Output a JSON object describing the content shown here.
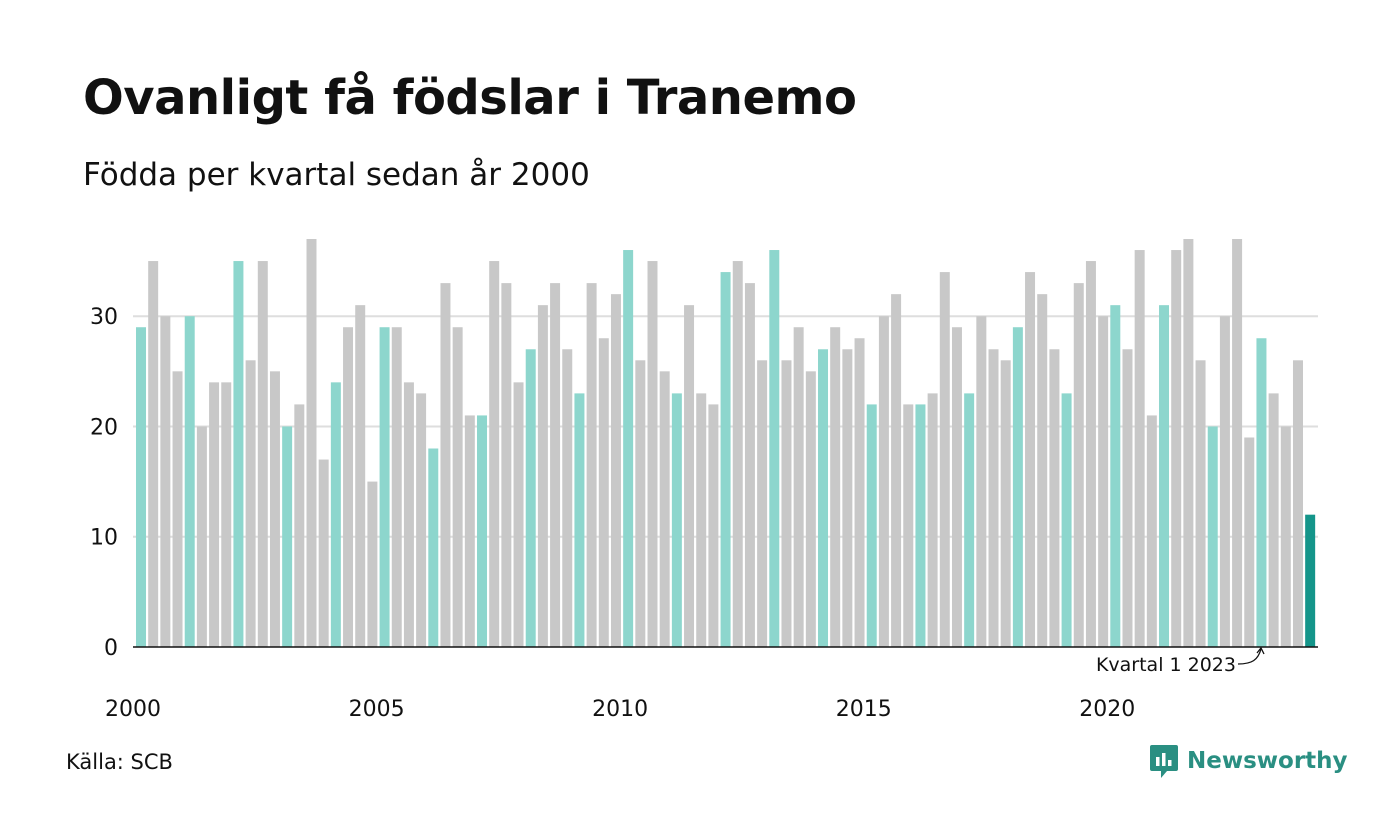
{
  "title": "Ovanligt få födslar i Tranemo",
  "subtitle": "Födda per kvartal sedan år 2000",
  "source": "Källa: SCB",
  "brand": "Newsworthy",
  "colors": {
    "highlight_quarter": "#8dd6cd",
    "other_quarters": "#c8c8c8",
    "latest": "#14958a",
    "grid": "#dedede",
    "brand": "#2a8f82"
  },
  "chart_data": {
    "type": "bar",
    "ylim": [
      0,
      37
    ],
    "yticks": [
      0,
      10,
      20,
      30
    ],
    "x_tick_labels": [
      "2000",
      "2005",
      "2010",
      "2015",
      "2020"
    ],
    "grid": true,
    "annotation": "Kvartal 1 2023",
    "highlighted_quarter": 1,
    "series": [
      {
        "start_year": 2000,
        "start_quarter": 1,
        "values": [
          29,
          35,
          30,
          25,
          30,
          20,
          24,
          24,
          35,
          26,
          35,
          25,
          20,
          22,
          37,
          17,
          24,
          29,
          31,
          15,
          29,
          29,
          24,
          23,
          18,
          33,
          29,
          21,
          21,
          35,
          33,
          24,
          27,
          31,
          33,
          27,
          23,
          33,
          28,
          32,
          36,
          26,
          35,
          25,
          23,
          31,
          23,
          22,
          34,
          35,
          33,
          26,
          36,
          26,
          29,
          25,
          27,
          29,
          27,
          28,
          22,
          30,
          32,
          22,
          22,
          23,
          34,
          29,
          23,
          30,
          27,
          26,
          29,
          34,
          32,
          27,
          23,
          33,
          35,
          30,
          31,
          27,
          36,
          21,
          31,
          36,
          37,
          26,
          20,
          30,
          37,
          19,
          28,
          23,
          20,
          26,
          12
        ]
      }
    ]
  }
}
